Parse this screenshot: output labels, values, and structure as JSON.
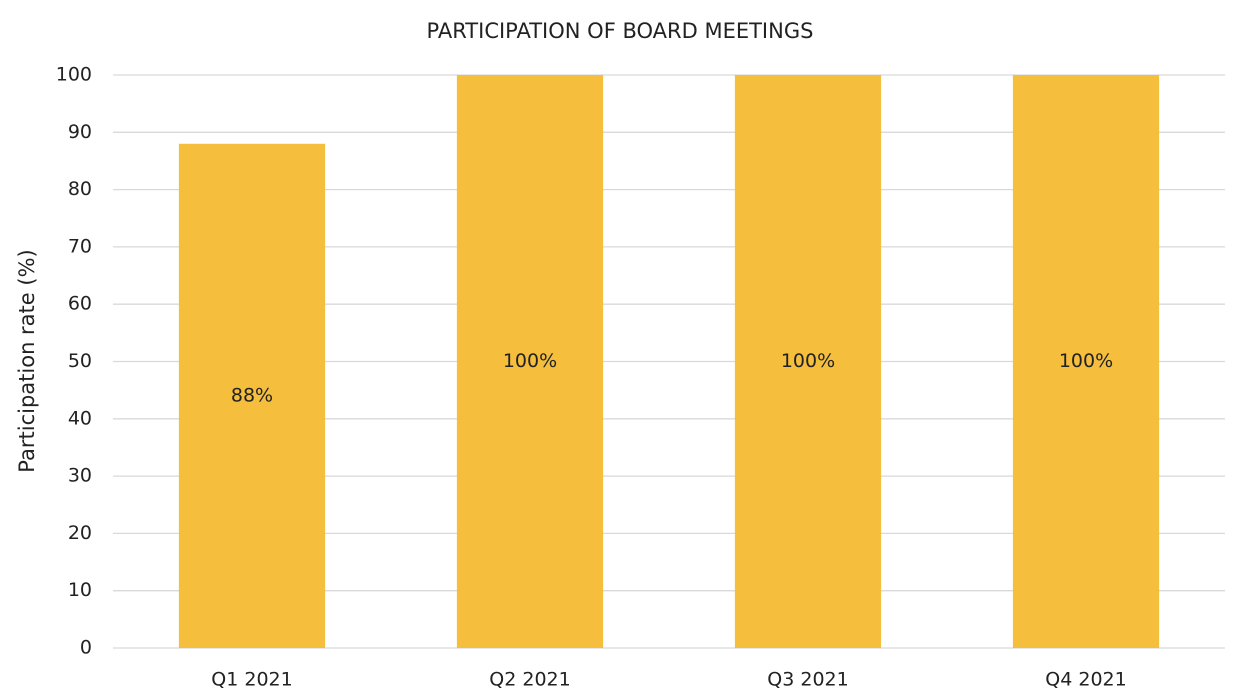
{
  "chart_data": {
    "type": "bar",
    "title": "PARTICIPATION OF BOARD MEETINGS",
    "y_label": "Participation rate (%)",
    "categories": [
      "Q1 2021",
      "Q2 2021",
      "Q3 2021",
      "Q4 2021"
    ],
    "values": [
      88,
      100,
      100,
      100
    ],
    "value_labels": [
      "88%",
      "100%",
      "100%",
      "100%"
    ],
    "color": "#f6be3d",
    "ylim": [
      0,
      100
    ],
    "yticks": [
      0,
      10,
      20,
      30,
      40,
      50,
      60,
      70,
      80,
      90,
      100
    ],
    "grid": true
  }
}
